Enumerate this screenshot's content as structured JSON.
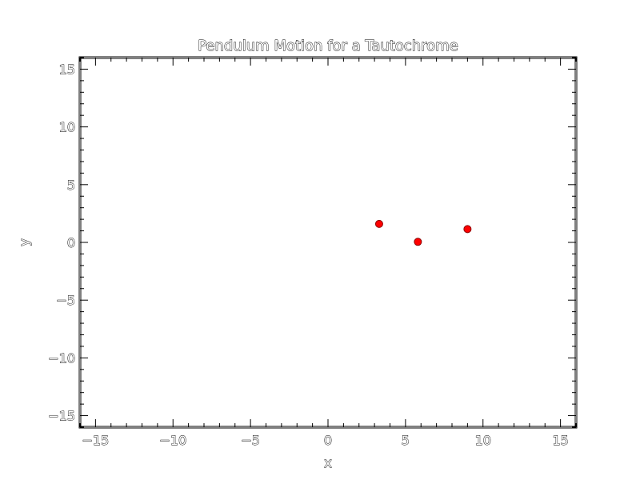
{
  "chart_data": {
    "type": "scatter",
    "title": "Pendulum Motion for a Tautochrome",
    "xlabel": "x",
    "ylabel": "y",
    "xlim": [
      -16,
      16
    ],
    "ylim": [
      -16,
      16
    ],
    "x_ticks": [
      -15,
      -10,
      -5,
      0,
      5,
      10,
      15
    ],
    "y_ticks": [
      -15,
      -10,
      -5,
      0,
      5,
      10,
      15
    ],
    "x_tick_labels": [
      "−15",
      "−10",
      "−5",
      "0",
      "5",
      "10",
      "15"
    ],
    "y_tick_labels": [
      "−15",
      "−10",
      "−5",
      "0",
      "5",
      "10",
      "15"
    ],
    "minor_tick_step": 1,
    "grid": false,
    "legend": "none",
    "marker_color": "#ff0000",
    "points": [
      {
        "x": 3.3,
        "y": 1.6
      },
      {
        "x": 5.8,
        "y": 0.05
      },
      {
        "x": 9.0,
        "y": 1.15
      }
    ]
  }
}
